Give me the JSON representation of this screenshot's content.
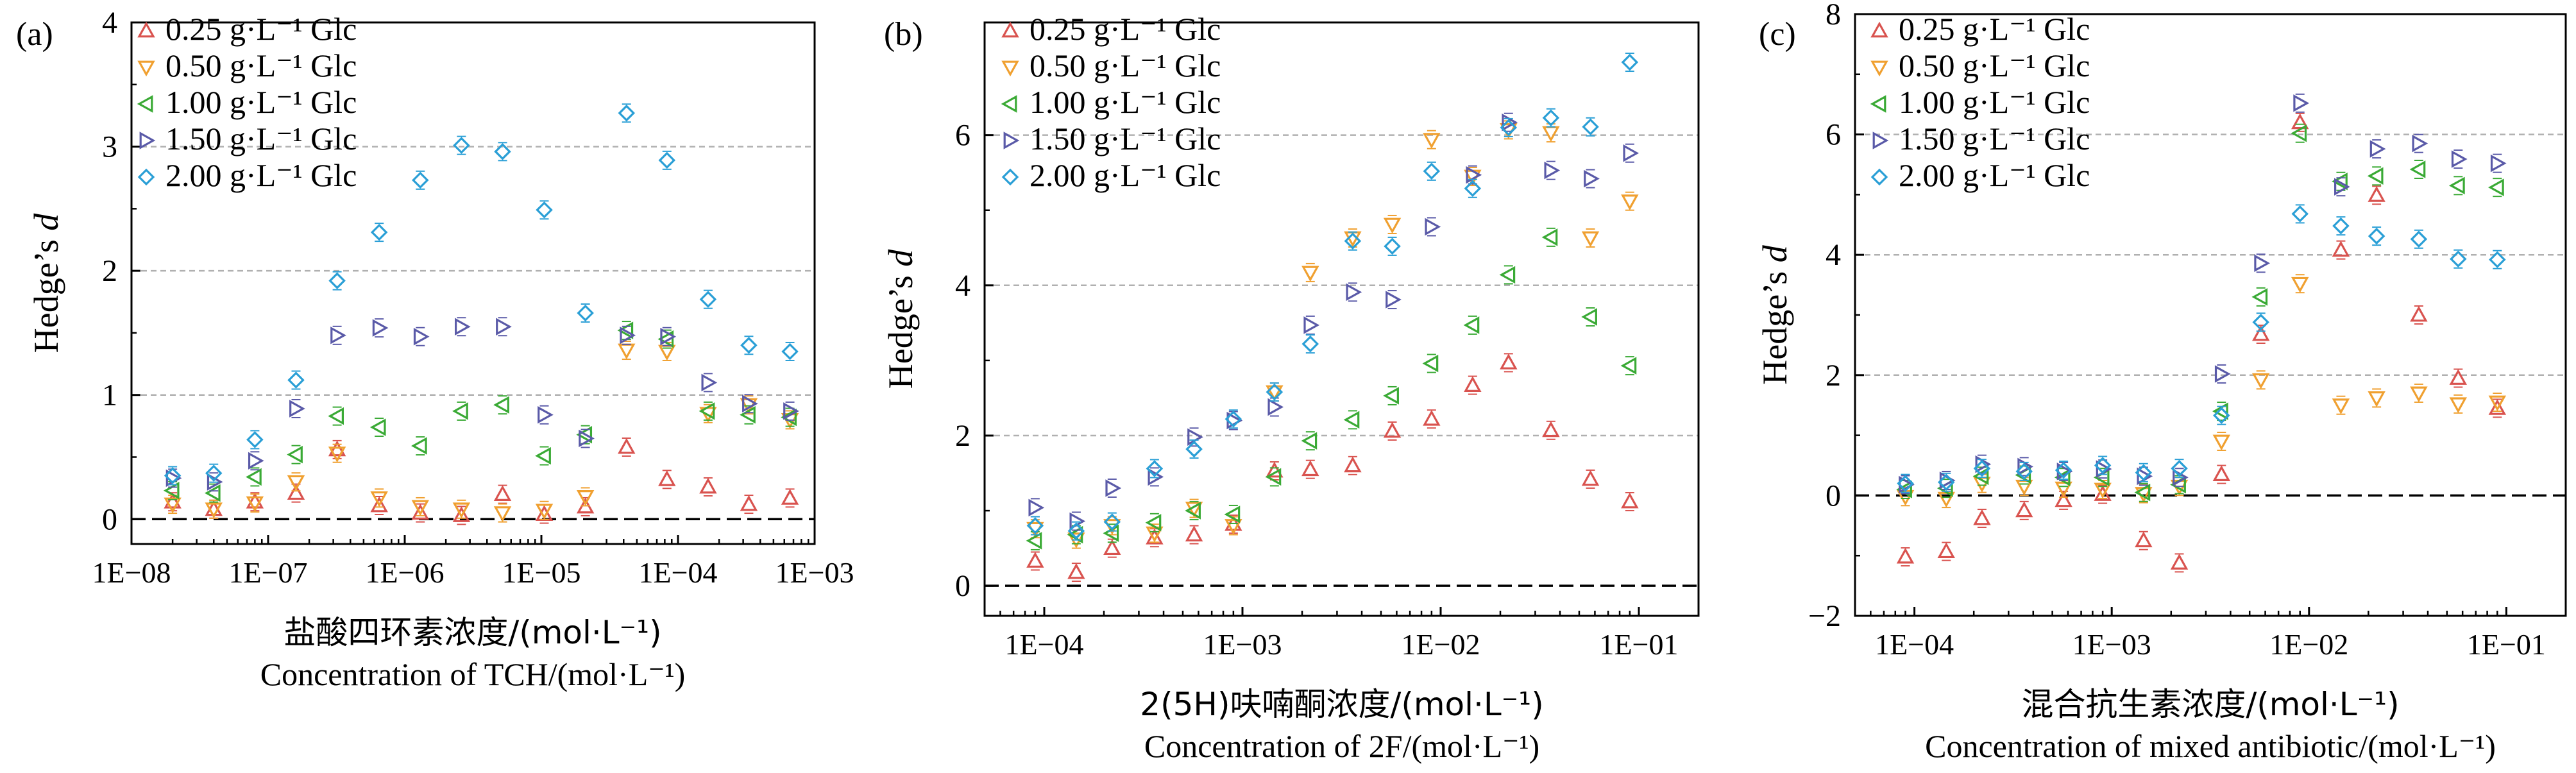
{
  "figure": {
    "panels": [
      "a",
      "b",
      "c"
    ]
  },
  "legend": {
    "entries": [
      {
        "label": "0.25 g·L⁻¹ Glc",
        "marker": "triangle-up",
        "color": "#d9534f"
      },
      {
        "label": "0.50 g·L⁻¹ Glc",
        "marker": "triangle-down",
        "color": "#f0a030"
      },
      {
        "label": "1.00 g·L⁻¹ Glc",
        "marker": "triangle-left",
        "color": "#3aaa35"
      },
      {
        "label": "1.50 g·L⁻¹ Glc",
        "marker": "triangle-right",
        "color": "#5a5aa8"
      },
      {
        "label": "2.00 g·L⁻¹ Glc",
        "marker": "diamond",
        "color": "#2a9fd6"
      }
    ]
  },
  "chart_data": [
    {
      "panel_label": "(a)",
      "type": "scatter",
      "xscale": "log",
      "xlim": [
        "1E-08",
        "1E-03"
      ],
      "xticks": [
        "1E−08",
        "1E−07",
        "1E−06",
        "1E−05",
        "1E−04",
        "1E−03"
      ],
      "ylim": [
        -0.2,
        4
      ],
      "yticks": [
        "0",
        "1",
        "2",
        "3",
        "4"
      ],
      "hgrid": [
        1,
        2,
        3
      ],
      "zero_line": 0,
      "ylabel": "Hedge’s d",
      "xlabel_cn": "盐酸四环素浓度/(mol·L⁻¹)",
      "xlabel_en": "Concentration of TCH/(mol·L⁻¹)",
      "x": [
        2e-08,
        4e-08,
        8e-08,
        1.6e-07,
        3.2e-07,
        6.5e-07,
        1.3e-06,
        2.6e-06,
        5.2e-06,
        1.05e-05,
        2.1e-05,
        4.2e-05,
        8.3e-05,
        0.000166,
        0.00033,
        0.00066
      ],
      "series": [
        {
          "name": "0.25 g·L⁻¹ Glc",
          "values": [
            0.14,
            0.08,
            0.14,
            0.21,
            0.56,
            0.11,
            0.05,
            0.03,
            0.2,
            0.04,
            0.1,
            0.58,
            0.32,
            0.26,
            0.12,
            0.17
          ]
        },
        {
          "name": "0.50 g·L⁻¹ Glc",
          "values": [
            0.12,
            0.08,
            0.13,
            0.3,
            0.53,
            0.17,
            0.1,
            0.08,
            0.05,
            0.07,
            0.18,
            1.36,
            1.35,
            0.85,
            0.92,
            0.8
          ]
        },
        {
          "name": "1.00 g·L⁻¹ Glc",
          "values": [
            0.23,
            0.21,
            0.34,
            0.52,
            0.83,
            0.74,
            0.59,
            0.87,
            0.92,
            0.51,
            0.68,
            1.52,
            1.45,
            0.87,
            0.84,
            0.82
          ]
        },
        {
          "name": "1.50 g·L⁻¹ Glc",
          "values": [
            0.33,
            0.3,
            0.47,
            0.89,
            1.48,
            1.54,
            1.47,
            1.55,
            1.55,
            0.84,
            0.65,
            1.48,
            1.47,
            1.1,
            0.93,
            0.87
          ]
        },
        {
          "name": "2.00 g·L⁻¹ Glc",
          "values": [
            0.35,
            0.37,
            0.64,
            1.12,
            1.92,
            2.31,
            2.73,
            3.01,
            2.96,
            2.49,
            1.66,
            3.27,
            2.89,
            1.77,
            1.4,
            1.35
          ]
        }
      ]
    },
    {
      "panel_label": "(b)",
      "type": "scatter",
      "xscale": "log",
      "xlim": [
        "5E-05",
        "2E-01"
      ],
      "xticks": [
        "1E−04",
        "1E−03",
        "1E−02",
        "1E−01"
      ],
      "ylim": [
        -0.4,
        7.5
      ],
      "yticks": [
        "0",
        "2",
        "4",
        "6"
      ],
      "hgrid": [
        2,
        4,
        6
      ],
      "zero_line": 0,
      "ylabel": "Hedge’s d",
      "xlabel_cn": "2(5H)呋喃酮浓度/(mol·L⁻¹)",
      "xlabel_en": "Concentration of 2F/(mol·L⁻¹)",
      "x": [
        9e-05,
        0.000145,
        0.00022,
        0.00036,
        0.00057,
        0.0009,
        0.00145,
        0.0022,
        0.0036,
        0.0057,
        0.009,
        0.0145,
        0.022,
        0.036,
        0.057,
        0.09
      ],
      "series": [
        {
          "name": "0.25 g·L⁻¹ Glc",
          "values": [
            0.33,
            0.18,
            0.5,
            0.64,
            0.68,
            0.82,
            1.53,
            1.55,
            1.6,
            2.06,
            2.22,
            2.67,
            2.97,
            2.07,
            1.42,
            1.12
          ]
        },
        {
          "name": "0.50 g·L⁻¹ Glc",
          "values": [
            0.76,
            0.62,
            0.8,
            0.7,
            1.03,
            0.8,
            2.58,
            4.17,
            4.63,
            4.81,
            5.94,
            5.45,
            6.07,
            6.03,
            4.63,
            5.12
          ]
        },
        {
          "name": "1.00 g·L⁻¹ Glc",
          "values": [
            0.6,
            0.68,
            0.7,
            0.84,
            1.0,
            0.95,
            1.45,
            1.93,
            2.21,
            2.53,
            2.96,
            3.47,
            4.14,
            4.64,
            3.58,
            2.93
          ]
        },
        {
          "name": "1.50 g·L⁻¹ Glc",
          "values": [
            1.04,
            0.86,
            1.3,
            1.45,
            1.98,
            2.2,
            2.38,
            3.47,
            3.91,
            3.81,
            4.78,
            5.47,
            6.17,
            5.53,
            5.42,
            5.76
          ]
        },
        {
          "name": "2.00 g·L⁻¹ Glc",
          "values": [
            0.8,
            0.73,
            0.85,
            1.56,
            1.82,
            2.22,
            2.58,
            3.22,
            4.59,
            4.52,
            5.52,
            5.29,
            6.1,
            6.23,
            6.11,
            6.97
          ]
        }
      ]
    },
    {
      "panel_label": "(c)",
      "type": "scatter",
      "xscale": "log",
      "xlim": [
        "5E-05",
        "2E-01"
      ],
      "xticks": [
        "1E−04",
        "1E−03",
        "1E−02",
        "1E−01"
      ],
      "ylim": [
        -2,
        8
      ],
      "yticks": [
        "−2",
        "0",
        "2",
        "4",
        "6",
        "8"
      ],
      "hgrid": [
        2,
        4,
        6
      ],
      "zero_line": 0,
      "ylabel": "Hedge’s d",
      "xlabel_cn": "混合抗生素浓度/(mol·L⁻¹)",
      "xlabel_en": "Concentration of mixed antibiotic/(mol·L⁻¹)",
      "x": [
        9e-05,
        0.000145,
        0.00022,
        0.00036,
        0.00057,
        0.0009,
        0.00145,
        0.0022,
        0.0036,
        0.0057,
        0.009,
        0.0145,
        0.022,
        0.036,
        0.057,
        0.09
      ],
      "series": [
        {
          "name": "0.25 g·L⁻¹ Glc",
          "values": [
            -1.02,
            -0.93,
            -0.38,
            -0.25,
            -0.08,
            0.02,
            -0.75,
            -1.12,
            0.35,
            2.68,
            6.2,
            4.08,
            4.99,
            3.0,
            1.95,
            1.45
          ]
        },
        {
          "name": "0.50 g·L⁻¹ Glc",
          "values": [
            -0.02,
            -0.05,
            0.2,
            0.15,
            0.12,
            0.1,
            0.03,
            0.15,
            0.9,
            1.92,
            3.52,
            1.5,
            1.62,
            1.7,
            1.52,
            1.55
          ]
        },
        {
          "name": "1.00 g·L⁻¹ Glc",
          "values": [
            0.1,
            0.12,
            0.32,
            0.34,
            0.3,
            0.3,
            0.05,
            0.18,
            1.4,
            3.3,
            6.02,
            5.22,
            5.31,
            5.42,
            5.15,
            5.12
          ]
        },
        {
          "name": "1.50 g·L⁻¹ Glc",
          "values": [
            0.18,
            0.25,
            0.52,
            0.48,
            0.4,
            0.44,
            0.32,
            0.3,
            2.02,
            3.86,
            6.52,
            5.13,
            5.76,
            5.85,
            5.59,
            5.52
          ]
        },
        {
          "name": "2.00 g·L⁻¹ Glc",
          "values": [
            0.2,
            0.22,
            0.45,
            0.4,
            0.42,
            0.5,
            0.38,
            0.45,
            1.33,
            2.88,
            4.68,
            4.48,
            4.31,
            4.26,
            3.93,
            3.92
          ]
        }
      ]
    }
  ]
}
